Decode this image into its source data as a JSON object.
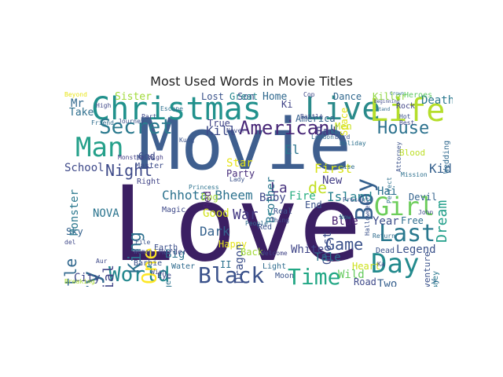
{
  "figure": {
    "title": "Most Used Words in Movie Titles"
  },
  "words": [
    {
      "id": "love",
      "text": "Love",
      "color": "#3b1f63"
    },
    {
      "id": "movie",
      "text": "Movie",
      "color": "#3f5f8f"
    },
    {
      "id": "christmas",
      "text": "Christmas",
      "color": "#21918c"
    },
    {
      "id": "live",
      "text": "Live",
      "color": "#2a8a8a"
    },
    {
      "id": "life",
      "text": "Life",
      "color": "#b5de2b"
    },
    {
      "id": "man",
      "text": "Man",
      "color": "#25a08a"
    },
    {
      "id": "secret",
      "text": "Secret",
      "color": "#2b7a8e"
    },
    {
      "id": "american",
      "text": "American",
      "color": "#482777"
    },
    {
      "id": "house",
      "text": "House",
      "color": "#2c728e"
    },
    {
      "id": "boy",
      "text": "Boy",
      "color": "#35608d"
    },
    {
      "id": "story",
      "text": "Story",
      "color": "#31688e"
    },
    {
      "id": "world",
      "text": "World",
      "color": "#23888e"
    },
    {
      "id": "black",
      "text": "Black",
      "color": "#3b528b"
    },
    {
      "id": "time",
      "text": "Time",
      "color": "#22a785"
    },
    {
      "id": "day",
      "text": "Day",
      "color": "#238a8d"
    },
    {
      "id": "last",
      "text": "Last",
      "color": "#2a788e"
    },
    {
      "id": "girl",
      "text": "Girl",
      "color": "#6ccd5a"
    },
    {
      "id": "one",
      "text": "One",
      "color": "#fde725"
    },
    {
      "id": "king",
      "text": "King",
      "color": "#2d708e"
    },
    {
      "id": "little",
      "text": "Little",
      "color": "#31688e"
    },
    {
      "id": "night",
      "text": "Night",
      "color": "#3e4a89"
    },
    {
      "id": "dream",
      "text": "Dream",
      "color": "#1f9e89"
    },
    {
      "id": "chhota",
      "text": "Chhota Bheem",
      "color": "#2c728e"
    },
    {
      "id": "la",
      "text": "La",
      "color": "#46327e"
    },
    {
      "id": "de",
      "text": "de",
      "color": "#c2df23"
    },
    {
      "id": "game",
      "text": "Game",
      "color": "#3b528b"
    },
    {
      "id": "island",
      "text": "Island",
      "color": "#26818e"
    },
    {
      "id": "kid",
      "text": "Kid",
      "color": "#35608d"
    },
    {
      "id": "special",
      "text": "Special",
      "color": "#414487"
    },
    {
      "id": "war",
      "text": "War",
      "color": "#443a83"
    },
    {
      "id": "dark",
      "text": "Dark",
      "color": "#34618d"
    },
    {
      "id": "first",
      "text": "First",
      "color": "#d8e219"
    },
    {
      "id": "legend",
      "text": "Legend",
      "color": "#3b528b"
    },
    {
      "id": "mr",
      "text": "Mr",
      "color": "#31688e"
    },
    {
      "id": "death",
      "text": "Death",
      "color": "#2a788e"
    },
    {
      "id": "kill",
      "text": "Kill",
      "color": "#3e4a89"
    },
    {
      "id": "home",
      "text": "Home",
      "color": "#30698e"
    },
    {
      "id": "lost",
      "text": "Lost",
      "color": "#3a538b"
    },
    {
      "id": "sister",
      "text": "Sister",
      "color": "#a0da39"
    },
    {
      "id": "killer",
      "text": "Killer",
      "color": "#90d743"
    },
    {
      "id": "heroes",
      "text": "Heroes",
      "color": "#5ec962"
    },
    {
      "id": "dance",
      "text": "Dance",
      "color": "#31688e"
    },
    {
      "id": "take",
      "text": "Take",
      "color": "#2e6f8e"
    },
    {
      "id": "school",
      "text": "School",
      "color": "#3e4989"
    },
    {
      "id": "nova",
      "text": "NOVA",
      "color": "#2b748e"
    },
    {
      "id": "city",
      "text": "City",
      "color": "#3f4889"
    },
    {
      "id": "sky",
      "text": "Sky",
      "color": "#34618d"
    },
    {
      "id": "big",
      "text": "Big",
      "color": "#2c728e"
    },
    {
      "id": "good",
      "text": "Good",
      "color": "#d2e21b"
    },
    {
      "id": "dog",
      "text": "Dog",
      "color": "#a5db36"
    },
    {
      "id": "happy",
      "text": "Happy",
      "color": "#e5e419"
    },
    {
      "id": "baby",
      "text": "Baby",
      "color": "#3f4788"
    },
    {
      "id": "star",
      "text": "Star",
      "color": "#e7e419"
    },
    {
      "id": "party",
      "text": "Party",
      "color": "#472d7b"
    },
    {
      "id": "brother",
      "text": "Brother",
      "color": "#2a778e"
    },
    {
      "id": "dragon",
      "text": "Dragon",
      "color": "#3c4f8a"
    },
    {
      "id": "back",
      "text": "Back",
      "color": "#a2da37"
    },
    {
      "id": "fire",
      "text": "Fire",
      "color": "#28ae80"
    },
    {
      "id": "new",
      "text": "New",
      "color": "#433e85"
    },
    {
      "id": "ghost",
      "text": "Ghost",
      "color": "#3d4d8a"
    },
    {
      "id": "blue",
      "text": "Blue",
      "color": "#482071"
    },
    {
      "id": "tale",
      "text": "Tale",
      "color": "#2c728e"
    },
    {
      "id": "white",
      "text": "White",
      "color": "#404688"
    },
    {
      "id": "two",
      "text": "Two",
      "color": "#355f8d"
    },
    {
      "id": "hai",
      "text": "Hai",
      "color": "#2d708e"
    },
    {
      "id": "devil",
      "text": "Devil",
      "color": "#33638d"
    },
    {
      "id": "year",
      "text": "Year",
      "color": "#3d4e8a"
    },
    {
      "id": "free",
      "text": "Free",
      "color": "#2f6c8e"
    },
    {
      "id": "adventure",
      "text": "Adventure",
      "color": "#3b528b"
    },
    {
      "id": "family",
      "text": "Family",
      "color": "#31688e"
    },
    {
      "id": "wedding",
      "text": "Wedding",
      "color": "#30698e"
    },
    {
      "id": "true",
      "text": "True",
      "color": "#414487"
    },
    {
      "id": "god",
      "text": "God",
      "color": "#3e4c8a"
    },
    {
      "id": "america",
      "text": "America",
      "color": "#35608d"
    },
    {
      "id": "el",
      "text": "El",
      "color": "#2b758e"
    },
    {
      "id": "bad",
      "text": "Bad",
      "color": "#433d84"
    },
    {
      "id": "u",
      "text": "U",
      "color": "#2f6b8e"
    },
    {
      "id": "end",
      "text": "End",
      "color": "#3b528b"
    },
    {
      "id": "men",
      "text": "Men",
      "color": "#c8e020"
    },
    {
      "id": "space",
      "text": "Space",
      "color": "#e2e418"
    },
    {
      "id": "ki",
      "text": "Ki",
      "color": "#404387"
    },
    {
      "id": "son",
      "text": "Son",
      "color": "#3e4a89"
    },
    {
      "id": "great",
      "text": "Great",
      "color": "#24868e"
    },
    {
      "id": "red",
      "text": "Red",
      "color": "#481f70"
    },
    {
      "id": "red2",
      "text": "Red",
      "color": "#3b518b"
    },
    {
      "id": "blood",
      "text": "Blood",
      "color": "#bddf26"
    },
    {
      "id": "v",
      "text": "V",
      "color": "#27808e"
    },
    {
      "id": "real",
      "text": "Real",
      "color": "#3b518b"
    },
    {
      "id": "light",
      "text": "Light",
      "color": "#2f6c8e"
    },
    {
      "id": "moon",
      "text": "Moon",
      "color": "#3a538b"
    },
    {
      "id": "wild",
      "text": "Wild",
      "color": "#65cb5e"
    },
    {
      "id": "heart",
      "text": "Heart",
      "color": "#cde11d"
    },
    {
      "id": "road",
      "text": "Road",
      "color": "#3e4989"
    },
    {
      "id": "dead",
      "text": "Dead",
      "color": "#3a548c"
    },
    {
      "id": "money",
      "text": "Money",
      "color": "#2a788e"
    },
    {
      "id": "earth",
      "text": "Earth",
      "color": "#3c508b"
    },
    {
      "id": "barbie",
      "text": "Barbie",
      "color": "#3b528b"
    },
    {
      "id": "eye",
      "text": "Eye",
      "color": "#3f4889"
    },
    {
      "id": "tiger",
      "text": "Tiger",
      "color": "#2c738e"
    },
    {
      "id": "breaking",
      "text": "Breaking",
      "color": "#addc30"
    },
    {
      "id": "water",
      "text": "Water",
      "color": "#2f6b8e"
    },
    {
      "id": "ii",
      "text": "II",
      "color": "#2c728e"
    },
    {
      "id": "murder",
      "text": "Murder",
      "color": "#3f4889"
    },
    {
      "id": "magic",
      "text": "Magic",
      "color": "#3e4989"
    },
    {
      "id": "right",
      "text": "Right",
      "color": "#414487"
    },
    {
      "id": "monster",
      "text": "Monster",
      "color": "#2a788e"
    },
    {
      "id": "monsterhigh",
      "text": "Monster High",
      "color": "#433e85"
    },
    {
      "id": "master",
      "text": "Master",
      "color": "#3d4d8a"
    },
    {
      "id": "miss",
      "text": "Miss",
      "color": "#3b528b"
    },
    {
      "id": "beyond",
      "text": "Beyond",
      "color": "#e8e419"
    },
    {
      "id": "high",
      "text": "High",
      "color": "#3f4889"
    },
    {
      "id": "friend",
      "text": "Friend",
      "color": "#2f6c8e"
    },
    {
      "id": "journey",
      "text": "Journey",
      "color": "#3b528b"
    },
    {
      "id": "part",
      "text": "Part",
      "color": "#3f4889"
    },
    {
      "id": "escape",
      "text": "Escape",
      "color": "#2d708e"
    },
    {
      "id": "battle",
      "text": "Battle",
      "color": "#3e4a89"
    },
    {
      "id": "london",
      "text": "London",
      "color": "#2f6b8e"
    },
    {
      "id": "bird",
      "text": "Bird",
      "color": "#3b528b"
    },
    {
      "id": "cop",
      "text": "Cop",
      "color": "#3e4989"
    },
    {
      "id": "rock",
      "text": "Rock",
      "color": "#414487"
    },
    {
      "id": "hot",
      "text": "Hot",
      "color": "#3b528b"
    },
    {
      "id": "best",
      "text": "Best",
      "color": "#3f4889"
    },
    {
      "id": "mission",
      "text": "Mission",
      "color": "#2d708e"
    },
    {
      "id": "john",
      "text": "John",
      "color": "#3e4989"
    },
    {
      "id": "return",
      "text": "Return",
      "color": "#2f6c8e"
    },
    {
      "id": "now",
      "text": "Now",
      "color": "#2a788e"
    },
    {
      "id": "halloween",
      "text": "Halloween",
      "color": "#3b528b"
    },
    {
      "id": "never",
      "text": "Never",
      "color": "#3f4889"
    },
    {
      "id": "princess",
      "text": "Princess",
      "color": "#2c728e"
    },
    {
      "id": "woman",
      "text": "Woman",
      "color": "#3e4a89"
    },
    {
      "id": "people",
      "text": "People",
      "color": "#2f6b8e"
    },
    {
      "id": "lady",
      "text": "Lady",
      "color": "#3b528b"
    },
    {
      "id": "welcome",
      "text": "Welcome",
      "color": "#414487"
    },
    {
      "id": "holiday",
      "text": "Holiday",
      "color": "#2d708e"
    },
    {
      "id": "thing",
      "text": "Thing",
      "color": "#3f4889"
    },
    {
      "id": "aur",
      "text": "Aur",
      "color": "#3e4989"
    },
    {
      "id": "history",
      "text": "History",
      "color": "#2c728e"
    },
    {
      "id": "file",
      "text": "File",
      "color": "#3b528b"
    },
    {
      "id": "del",
      "text": "del",
      "color": "#3f4889"
    },
    {
      "id": "rise",
      "text": "Rise",
      "color": "#2f6c8e"
    },
    {
      "id": "present",
      "text": "Present",
      "color": "#3b528b"
    },
    {
      "id": "perfect",
      "text": "Perfect",
      "color": "#2d708e"
    },
    {
      "id": "wish",
      "text": "Wish",
      "color": "#3e4a89"
    },
    {
      "id": "kung",
      "text": "Kung",
      "color": "#3b528b"
    },
    {
      "id": "ka",
      "text": "Ka",
      "color": "#3f4889"
    },
    {
      "id": "beginning",
      "text": "Beginning",
      "color": "#3e4a89"
    },
    {
      "id": "stand",
      "text": "Stand",
      "color": "#2f6b8e"
    },
    {
      "id": "crown",
      "text": "Crown",
      "color": "#2c728e"
    },
    {
      "id": "attorney",
      "text": "Attorney",
      "color": "#3b528b"
    }
  ]
}
